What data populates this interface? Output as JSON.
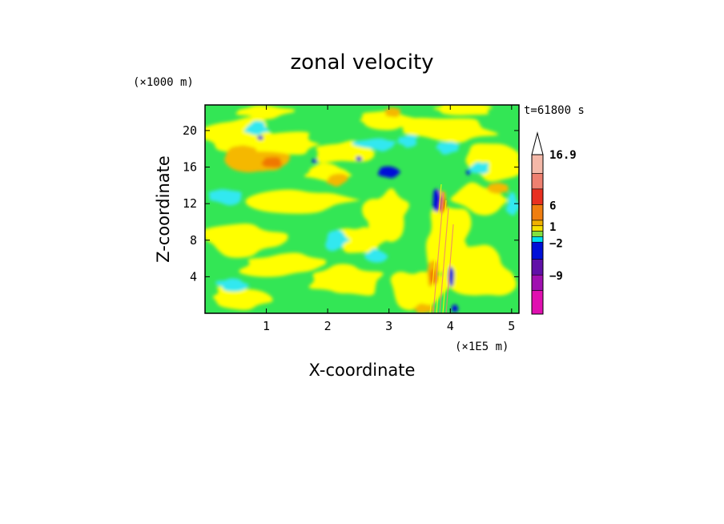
{
  "chart_data": {
    "type": "heatmap",
    "title": "zonal velocity",
    "xlabel": "X-coordinate",
    "ylabel": "Z-coordinate",
    "x_unit": "(×1E5 m)",
    "y_unit": "(×1000 m)",
    "time_label": "t=61800 s",
    "xlim": [
      0,
      5.12
    ],
    "ylim": [
      0,
      22.8
    ],
    "x_ticks": [
      "1",
      "2",
      "3",
      "4",
      "5"
    ],
    "y_ticks": [
      "4",
      "8",
      "12",
      "16",
      "20"
    ],
    "colorbar": {
      "labels": [
        "16.9",
        "6",
        "1",
        "−2",
        "−9"
      ],
      "colors_top_to_bottom": [
        "#f4b8a8",
        "#ee8070",
        "#e83020",
        "#f07e10",
        "#f0b000",
        "#f6e000",
        "#80e040",
        "#00e0f0",
        "#0010d8",
        "#6010a8",
        "#a010b0",
        "#e010b0"
      ],
      "extend_top": true
    },
    "background_color": "#33e655",
    "field_colors": [
      "#33e655",
      "#ffff00",
      "#33e8f0",
      "#f5b800",
      "#f07800",
      "#ee8070",
      "#0010d8"
    ]
  }
}
